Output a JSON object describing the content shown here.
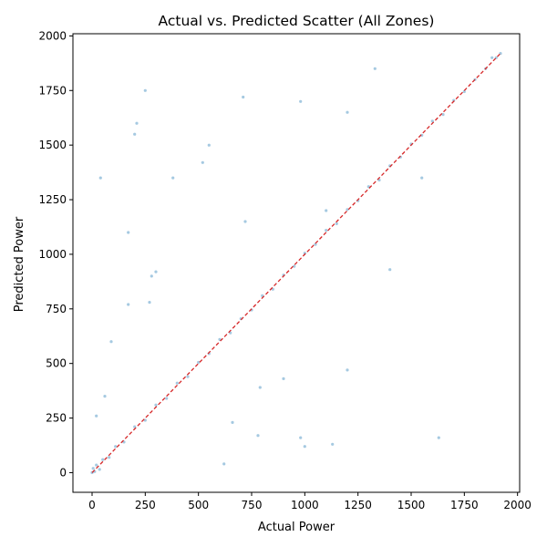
{
  "chart_data": {
    "type": "scatter",
    "title": "Actual vs. Predicted Scatter (All Zones)",
    "xlabel": "Actual Power",
    "ylabel": "Predicted Power",
    "xlim": [
      -90,
      2010
    ],
    "ylim": [
      -90,
      2010
    ],
    "xticks": [
      0,
      250,
      500,
      750,
      1000,
      1250,
      1500,
      1750,
      2000
    ],
    "yticks": [
      0,
      250,
      500,
      750,
      1000,
      1250,
      1500,
      1750,
      2000
    ],
    "grid": false,
    "legend": "none",
    "colors": {
      "points": "#1f77b4",
      "reference_line": "#d62728"
    },
    "reference_line": {
      "style": "dashed",
      "from": [
        0,
        0
      ],
      "to": [
        1920,
        1920
      ]
    },
    "series": [
      {
        "point_opacity": 0.4,
        "x": [
          0,
          5,
          12,
          20,
          35,
          50,
          80,
          110,
          150,
          200,
          250,
          300,
          350,
          400,
          450,
          500,
          550,
          600,
          650,
          700,
          750,
          800,
          850,
          900,
          950,
          1000,
          1050,
          1100,
          1150,
          1200,
          1250,
          1300,
          1350,
          1400,
          1450,
          1500,
          1550,
          1600,
          1650,
          1700,
          1750,
          1800,
          1850,
          1900,
          1920,
          60,
          90,
          40,
          20,
          280,
          200,
          210,
          270,
          170,
          380,
          520,
          710,
          980,
          1100,
          1200,
          1550,
          1880,
          1630,
          1000,
          900,
          790,
          660,
          720,
          1330,
          1400,
          300,
          170,
          620,
          780,
          980,
          1130,
          1200,
          250,
          550
        ],
        "y": [
          0,
          20,
          5,
          35,
          15,
          60,
          70,
          120,
          140,
          210,
          240,
          310,
          340,
          410,
          440,
          505,
          545,
          610,
          640,
          705,
          745,
          810,
          840,
          905,
          945,
          1005,
          1045,
          1110,
          1140,
          1205,
          1245,
          1310,
          1340,
          1405,
          1445,
          1505,
          1545,
          1610,
          1640,
          1705,
          1745,
          1800,
          1850,
          1900,
          1920,
          350,
          600,
          1350,
          260,
          900,
          1550,
          1600,
          780,
          1100,
          1350,
          1420,
          1720,
          1700,
          1200,
          1650,
          1350,
          1900,
          160,
          120,
          430,
          390,
          230,
          1150,
          1850,
          930,
          920,
          770,
          40,
          170,
          160,
          130,
          470,
          1750,
          1500
        ]
      }
    ]
  }
}
